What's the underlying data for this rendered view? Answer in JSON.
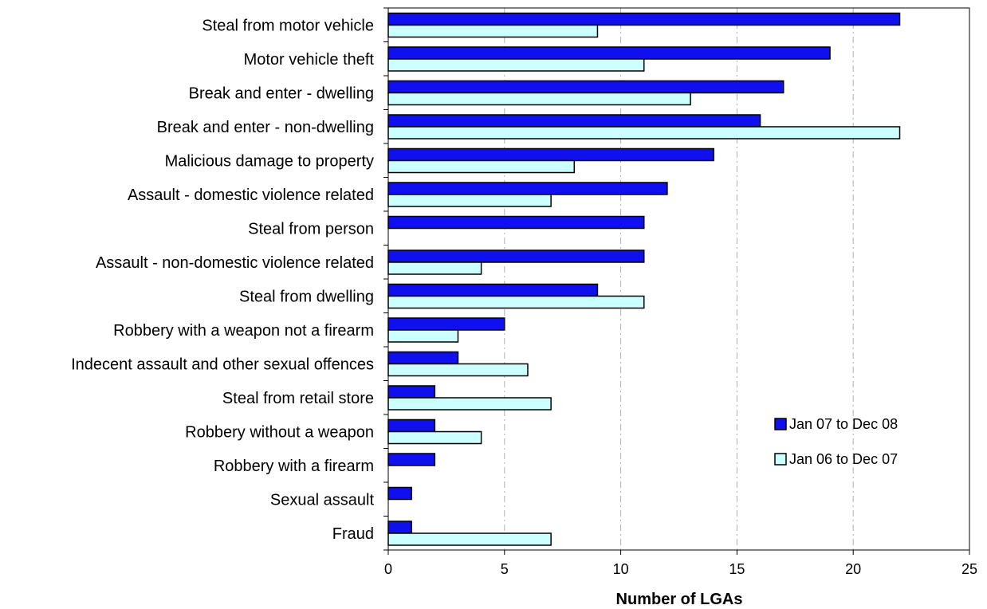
{
  "chart_data": {
    "type": "bar",
    "orientation": "horizontal",
    "categories": [
      "Steal from motor vehicle",
      "Motor vehicle theft",
      "Break and enter - dwelling",
      "Break and enter - non-dwelling",
      "Malicious damage to property",
      "Assault - domestic violence related",
      "Steal from person",
      "Assault - non-domestic violence related",
      "Steal from dwelling",
      "Robbery with a weapon not a firearm",
      "Indecent assault and other sexual offences",
      "Steal from retail store",
      "Robbery without a weapon",
      "Robbery with a firearm",
      "Sexual assault",
      "Fraud"
    ],
    "series": [
      {
        "name": "Jan 07 to Dec 08",
        "color": "#1010ee",
        "values": [
          22,
          19,
          17,
          16,
          14,
          12,
          11,
          11,
          9,
          5,
          3,
          2,
          2,
          2,
          1,
          1
        ]
      },
      {
        "name": "Jan 06 to Dec 07",
        "color": "#ccffff",
        "values": [
          9,
          11,
          13,
          22,
          8,
          7,
          0,
          4,
          11,
          3,
          6,
          7,
          4,
          0,
          0,
          7
        ]
      }
    ],
    "xlabel": "Number of LGAs",
    "xlim": [
      0,
      25
    ],
    "xticks": [
      "0",
      "5",
      "10",
      "15",
      "20",
      "25"
    ],
    "grid": "vertical dashed",
    "legend_position": "bottom-right"
  }
}
